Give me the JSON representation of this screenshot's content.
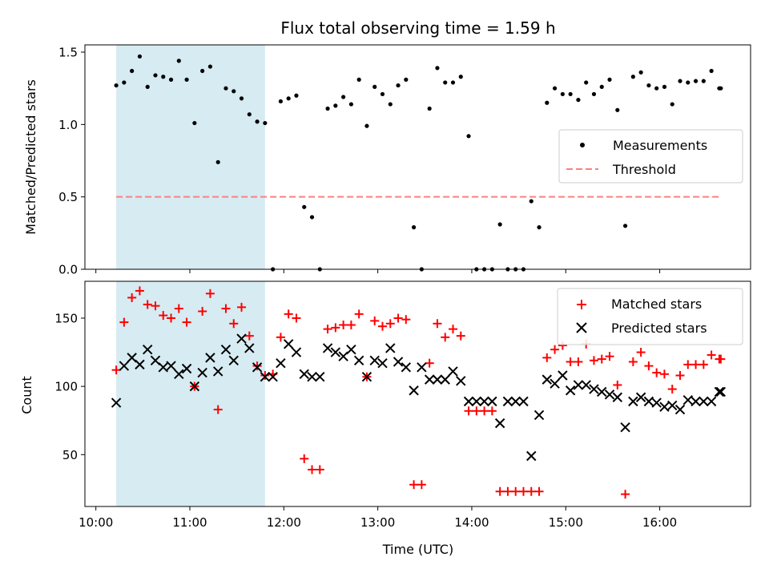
{
  "colors": {
    "measurements": "#000000",
    "threshold": "#ff7f7f",
    "matched": "#ff0000",
    "predicted": "#000000",
    "highlight": "#add8e6"
  },
  "chart_data": [
    {
      "type": "scatter",
      "title": "Flux total observing time = 1.59 h",
      "xlabel": "",
      "ylabel": "Matched/Predicted stars",
      "x_unit": "time (UTC)",
      "xlim": [
        "09:53",
        "16:58"
      ],
      "ylim": [
        0,
        1.55
      ],
      "yticks": [
        0.0,
        0.5,
        1.0,
        1.5
      ],
      "ytick_labels": [
        "0.0",
        "0.5",
        "1.0",
        "1.5"
      ],
      "grid": false,
      "legend": {
        "placement": "center-right",
        "entries": [
          "Measurements",
          "Threshold"
        ]
      },
      "highlight_span": {
        "x": [
          "10:13",
          "11:48"
        ]
      },
      "threshold": {
        "name": "Threshold",
        "y": 0.5,
        "x": [
          "10:13",
          "16:39"
        ]
      },
      "series": [
        {
          "name": "Measurements",
          "marker": "dot",
          "x": [
            "10:13",
            "10:18",
            "10:23",
            "10:28",
            "10:33",
            "10:38",
            "10:43",
            "10:48",
            "10:53",
            "10:58",
            "11:03",
            "11:08",
            "11:13",
            "11:18",
            "11:23",
            "11:28",
            "11:33",
            "11:38",
            "11:43",
            "11:48",
            "11:53",
            "11:58",
            "12:03",
            "12:08",
            "12:13",
            "12:18",
            "12:23",
            "12:28",
            "12:33",
            "12:38",
            "12:43",
            "12:48",
            "12:53",
            "12:58",
            "13:03",
            "13:08",
            "13:13",
            "13:18",
            "13:23",
            "13:28",
            "13:33",
            "13:38",
            "13:43",
            "13:48",
            "13:53",
            "13:58",
            "14:03",
            "14:08",
            "14:13",
            "14:18",
            "14:23",
            "14:28",
            "14:33",
            "14:38",
            "14:43",
            "14:48",
            "14:53",
            "14:58",
            "15:03",
            "15:08",
            "15:13",
            "15:18",
            "15:23",
            "15:28",
            "15:33",
            "15:38",
            "15:43",
            "15:48",
            "15:53",
            "15:58",
            "16:03",
            "16:08",
            "16:13",
            "16:18",
            "16:23",
            "16:28",
            "16:33",
            "16:38",
            "16:39"
          ],
          "y": [
            1.27,
            1.29,
            1.37,
            1.47,
            1.26,
            1.34,
            1.33,
            1.31,
            1.44,
            1.31,
            1.01,
            1.37,
            1.4,
            0.74,
            1.25,
            1.23,
            1.18,
            1.07,
            1.02,
            1.01,
            0.0,
            1.16,
            1.18,
            1.2,
            0.43,
            0.36,
            0.0,
            1.11,
            1.13,
            1.19,
            1.14,
            1.31,
            0.99,
            1.26,
            1.21,
            1.14,
            1.27,
            1.31,
            0.29,
            0.0,
            1.11,
            1.39,
            1.29,
            1.29,
            1.33,
            0.92,
            0.0,
            0.0,
            0.0,
            0.31,
            0.0,
            0.0,
            0.0,
            0.47,
            0.29,
            1.15,
            1.25,
            1.21,
            1.21,
            1.17,
            1.29,
            1.21,
            1.26,
            1.31,
            1.1,
            0.3,
            1.33,
            1.36,
            1.27,
            1.25,
            1.26,
            1.14,
            1.3,
            1.29,
            1.3,
            1.3,
            1.37,
            1.25,
            1.25
          ]
        }
      ]
    },
    {
      "type": "scatter",
      "title": "",
      "xlabel": "Time (UTC)",
      "ylabel": "Count",
      "x_unit": "time (UTC)",
      "xlim": [
        "09:53",
        "16:58"
      ],
      "ylim": [
        12,
        177
      ],
      "xticks": [
        "10:00",
        "11:00",
        "12:00",
        "13:00",
        "14:00",
        "15:00",
        "16:00"
      ],
      "yticks": [
        50,
        100,
        150
      ],
      "ytick_labels": [
        "50",
        "100",
        "150"
      ],
      "grid": false,
      "legend": {
        "placement": "top-right",
        "entries": [
          "Matched stars",
          "Predicted stars"
        ]
      },
      "highlight_span": {
        "x": [
          "10:13",
          "11:48"
        ]
      },
      "series": [
        {
          "name": "Matched stars",
          "marker": "plus",
          "x": [
            "10:13",
            "10:18",
            "10:23",
            "10:28",
            "10:33",
            "10:38",
            "10:43",
            "10:48",
            "10:53",
            "10:58",
            "11:03",
            "11:08",
            "11:13",
            "11:18",
            "11:23",
            "11:28",
            "11:33",
            "11:38",
            "11:43",
            "11:48",
            "11:53",
            "11:58",
            "12:03",
            "12:08",
            "12:13",
            "12:18",
            "12:23",
            "12:28",
            "12:33",
            "12:38",
            "12:43",
            "12:48",
            "12:53",
            "12:58",
            "13:03",
            "13:08",
            "13:13",
            "13:18",
            "13:23",
            "13:28",
            "13:33",
            "13:38",
            "13:43",
            "13:48",
            "13:53",
            "13:58",
            "14:03",
            "14:08",
            "14:13",
            "14:18",
            "14:23",
            "14:28",
            "14:33",
            "14:38",
            "14:43",
            "14:48",
            "14:53",
            "14:58",
            "15:03",
            "15:08",
            "15:13",
            "15:18",
            "15:23",
            "15:28",
            "15:33",
            "15:38",
            "15:43",
            "15:48",
            "15:53",
            "15:58",
            "16:03",
            "16:08",
            "16:13",
            "16:18",
            "16:23",
            "16:28",
            "16:33",
            "16:38",
            "16:39"
          ],
          "y": [
            112,
            147,
            165,
            170,
            160,
            159,
            152,
            150,
            157,
            147,
            100,
            155,
            168,
            83,
            157,
            146,
            158,
            137,
            115,
            108,
            109,
            136,
            153,
            150,
            47,
            39,
            39,
            142,
            143,
            145,
            145,
            153,
            107,
            148,
            144,
            146,
            150,
            149,
            28,
            28,
            117,
            146,
            136,
            142,
            137,
            82,
            82,
            82,
            82,
            23,
            23,
            23,
            23,
            23,
            23,
            121,
            127,
            130,
            118,
            118,
            131,
            119,
            120,
            122,
            101,
            21,
            118,
            125,
            115,
            110,
            109,
            98,
            108,
            116,
            116,
            116,
            123,
            120,
            120
          ]
        },
        {
          "name": "Predicted stars",
          "marker": "x",
          "x": [
            "10:13",
            "10:18",
            "10:23",
            "10:28",
            "10:33",
            "10:38",
            "10:43",
            "10:48",
            "10:53",
            "10:58",
            "11:03",
            "11:08",
            "11:13",
            "11:18",
            "11:23",
            "11:28",
            "11:33",
            "11:38",
            "11:43",
            "11:48",
            "11:53",
            "11:58",
            "12:03",
            "12:08",
            "12:13",
            "12:18",
            "12:23",
            "12:28",
            "12:33",
            "12:38",
            "12:43",
            "12:48",
            "12:53",
            "12:58",
            "13:03",
            "13:08",
            "13:13",
            "13:18",
            "13:23",
            "13:28",
            "13:33",
            "13:38",
            "13:43",
            "13:48",
            "13:53",
            "13:58",
            "14:03",
            "14:08",
            "14:13",
            "14:18",
            "14:23",
            "14:28",
            "14:33",
            "14:38",
            "14:43",
            "14:48",
            "14:53",
            "14:58",
            "15:03",
            "15:08",
            "15:13",
            "15:18",
            "15:23",
            "15:28",
            "15:33",
            "15:38",
            "15:43",
            "15:48",
            "15:53",
            "15:58",
            "16:03",
            "16:08",
            "16:13",
            "16:18",
            "16:23",
            "16:28",
            "16:33",
            "16:38",
            "16:39"
          ],
          "y": [
            88,
            115,
            121,
            116,
            127,
            119,
            114,
            115,
            109,
            113,
            100,
            110,
            121,
            111,
            127,
            119,
            135,
            128,
            114,
            107,
            107,
            117,
            131,
            125,
            109,
            107,
            107,
            128,
            125,
            122,
            127,
            119,
            107,
            119,
            117,
            128,
            118,
            114,
            97,
            114,
            105,
            105,
            105,
            111,
            104,
            89,
            89,
            89,
            89,
            73,
            89,
            89,
            89,
            49,
            79,
            105,
            102,
            108,
            97,
            101,
            101,
            98,
            96,
            94,
            92,
            70,
            89,
            92,
            89,
            88,
            85,
            86,
            83,
            90,
            89,
            89,
            89,
            96,
            96
          ]
        }
      ]
    }
  ]
}
